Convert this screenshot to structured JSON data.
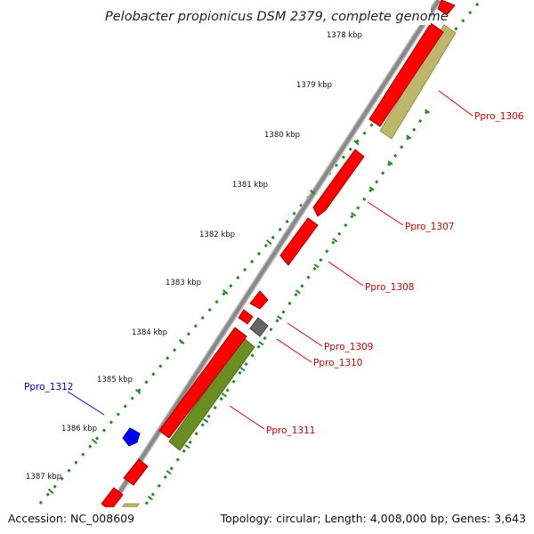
{
  "map": {
    "title": "Pelobacter propionicus DSM 2379, complete genome",
    "accession": "Accession: NC_008609",
    "summary": "Topology: circular; Length: 4,008,000 bp; Genes: 3,643"
  },
  "ticks": [
    "1378 kbp",
    "1379 kbp",
    "1380 kbp",
    "1381 kbp",
    "1382 kbp",
    "1383 kbp",
    "1384 kbp",
    "1385 kbp",
    "1386 kbp",
    "1387 kbp"
  ],
  "gene_labels": [
    {
      "key": "ppro-1306",
      "text": "Ppro_1306",
      "color": "#cc0000"
    },
    {
      "key": "ppro-1307",
      "text": "Ppro_1307",
      "color": "#cc0000"
    },
    {
      "key": "ppro-1308",
      "text": "Ppro_1308",
      "color": "#cc0000"
    },
    {
      "key": "ppro-1309",
      "text": "Ppro_1309",
      "color": "#cc0000"
    },
    {
      "key": "ppro-1310",
      "text": "Ppro_1310",
      "color": "#cc0000"
    },
    {
      "key": "ppro-1311",
      "text": "Ppro_1311",
      "color": "#cc0000"
    },
    {
      "key": "ppro-1312",
      "text": "Ppro_1312",
      "color": "#0000cc"
    }
  ],
  "colors": {
    "cds": "#ff0000",
    "rna": "#0000ff",
    "misc": "#777777",
    "pseudo": "#ffb6c1",
    "cog_olive": "#6b8e23",
    "cog_khaki": "#bdb76b",
    "backbone": "#888888",
    "tick": "#228b22"
  }
}
